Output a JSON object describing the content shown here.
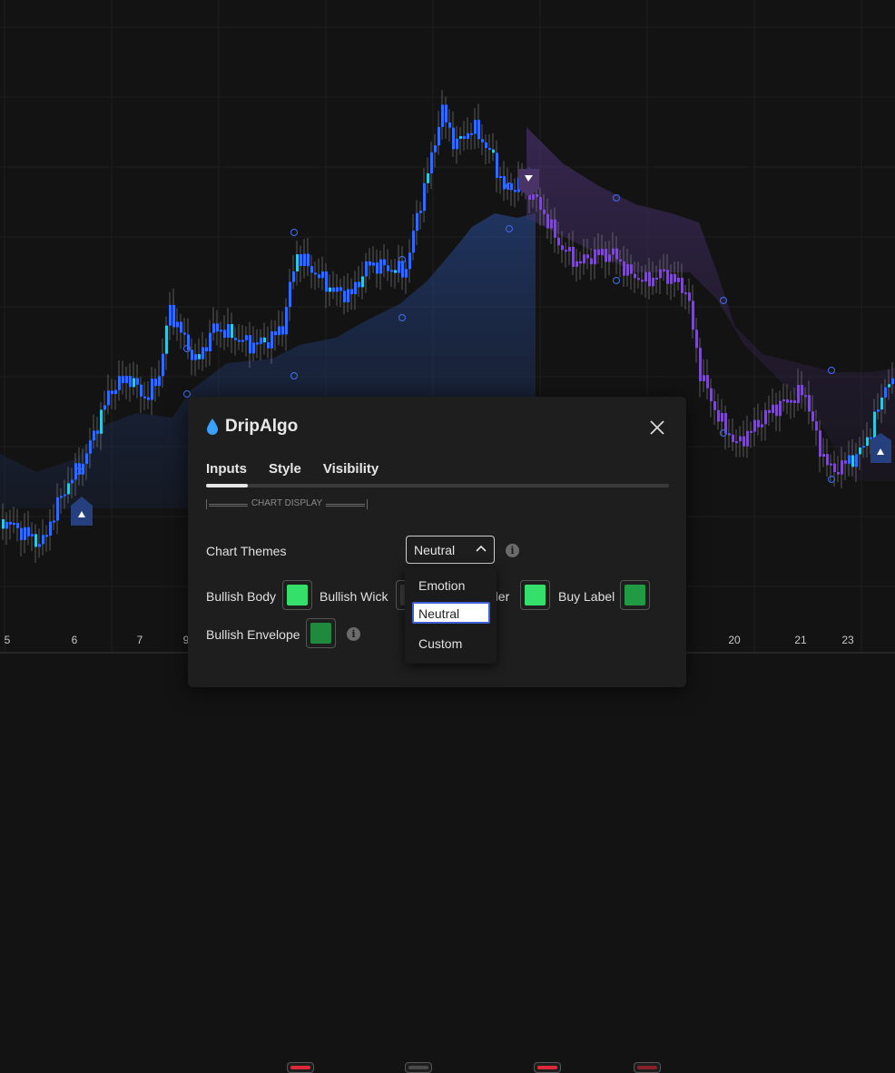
{
  "chart": {
    "x_ticks": [
      {
        "label": "5",
        "x": 8
      },
      {
        "label": "6",
        "x": 82
      },
      {
        "label": "7",
        "x": 154
      },
      {
        "label": "9",
        "x": 205
      },
      {
        "label": "20",
        "x": 809
      },
      {
        "label": "21",
        "x": 882
      },
      {
        "label": "23",
        "x": 934
      }
    ],
    "colors": {
      "bull": "#2f6bff",
      "bull_light": "#2ec9e0",
      "bear": "#7a4cc8",
      "band_bull": "#2a4f9e",
      "band_bear": "#4e3478"
    }
  },
  "dialog": {
    "title": "DripAlgo",
    "icon": "water-drop-icon",
    "close_icon": "close-icon",
    "tabs": [
      "Inputs",
      "Style",
      "Visibility"
    ],
    "active_tab": "Inputs",
    "section": "CHART DISPLAY",
    "chart_themes": {
      "label": "Chart Themes",
      "value": "Neutral"
    },
    "colors": {
      "bullish_body": {
        "label": "Bullish Body",
        "color": "#34e06a"
      },
      "bullish_wick": {
        "label": "Bullish Wick",
        "color": "#3d3d3d"
      },
      "bullish_border": {
        "label": "der",
        "color": "#34e06a"
      },
      "buy_label": {
        "label": "Buy Label",
        "color": "#219a44"
      },
      "bullish_envelope": {
        "label": "Bullish Envelope",
        "color": "#1f8a3e"
      }
    },
    "bottom_swatches": [
      "#e0283a",
      "#4a4a4a",
      "#e0283a",
      "#8a1f28"
    ]
  },
  "theme_menu": {
    "options": [
      "Emotion",
      "Neutral",
      "Custom"
    ],
    "selected": "Neutral"
  }
}
